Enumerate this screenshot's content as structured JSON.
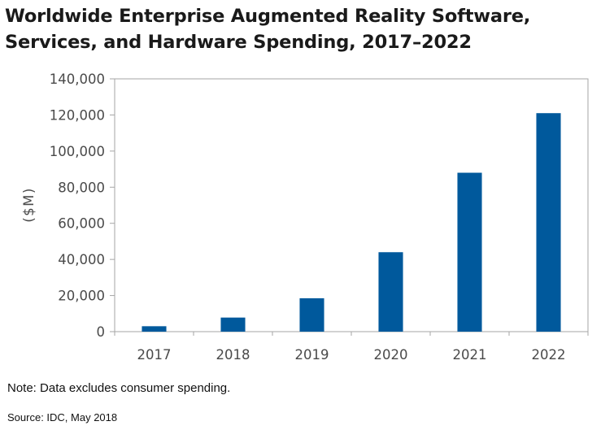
{
  "chart_data": {
    "type": "bar",
    "title": "Worldwide Enterprise Augmented Reality Software, Services, and Hardware Spending, 2017–2022",
    "xlabel": "",
    "ylabel": "($M)",
    "categories": [
      "2017",
      "2018",
      "2019",
      "2020",
      "2021",
      "2022"
    ],
    "values": [
      3000,
      7800,
      18500,
      44000,
      88000,
      121000
    ],
    "ylim": [
      0,
      140000
    ],
    "yticks": [
      0,
      20000,
      40000,
      60000,
      80000,
      100000,
      120000,
      140000
    ],
    "ytick_labels": [
      "0",
      "20,000",
      "40,000",
      "60,000",
      "80,000",
      "100,000",
      "120,000",
      "140,000"
    ],
    "grid": false,
    "bar_color": "#00599c"
  },
  "footer": {
    "note": "Note: Data excludes consumer spending.",
    "source": "Source: IDC, May 2018"
  }
}
